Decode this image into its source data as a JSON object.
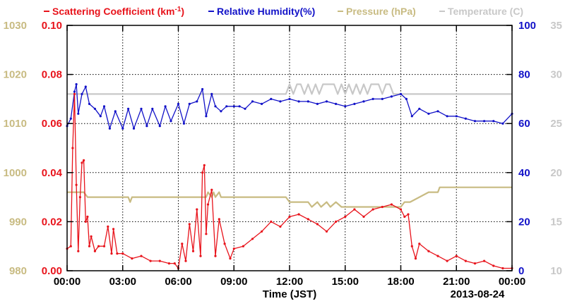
{
  "chart_data": {
    "type": "line",
    "title": "",
    "xlabel": "Time (JST)",
    "date_label": "2013-08-24",
    "x_ticks": [
      "00:00",
      "03:00",
      "06:00",
      "09:00",
      "12:00",
      "15:00",
      "18:00",
      "21:00",
      "00:00"
    ],
    "xlim_hours": [
      0,
      24
    ],
    "grid": true,
    "legend_placement": "top",
    "axes": {
      "pressure": {
        "ticks": [
          980,
          990,
          1000,
          1010,
          1020,
          1030
        ],
        "range": [
          980,
          1030
        ],
        "color": "#c8bb82",
        "side": "left-outer"
      },
      "scattering": {
        "ticks": [
          "0.00",
          "0.02",
          "0.04",
          "0.06",
          "0.08",
          "0.10"
        ],
        "range": [
          0,
          0.1
        ],
        "color": "#e8131b",
        "side": "left-inner"
      },
      "humidity": {
        "ticks": [
          0,
          20,
          40,
          60,
          80,
          100
        ],
        "range": [
          0,
          100
        ],
        "color": "#1212c8",
        "side": "right-inner"
      },
      "temperature": {
        "ticks": [
          10,
          15,
          20,
          25,
          30,
          35
        ],
        "range": [
          10,
          35
        ],
        "color": "#c8c8c8",
        "side": "right-outer"
      }
    },
    "series": [
      {
        "name": "Scattering Coefficient (km-1)",
        "legend_main": "Scattering Coefficient (km",
        "legend_sup": "-1",
        "legend_tail": ")",
        "color": "#e8131b",
        "axis": "scattering",
        "markers": true,
        "x": [
          0,
          0.2,
          0.3,
          0.4,
          0.5,
          0.6,
          0.7,
          0.8,
          0.9,
          1.0,
          1.1,
          1.2,
          1.3,
          1.5,
          1.7,
          2.0,
          2.2,
          2.4,
          2.5,
          2.7,
          3.0,
          3.5,
          4.0,
          4.5,
          5.0,
          5.5,
          5.8,
          6.0,
          6.2,
          6.4,
          6.6,
          6.8,
          7.0,
          7.2,
          7.3,
          7.4,
          7.5,
          7.6,
          7.8,
          8.0,
          8.2,
          8.5,
          8.8,
          9.0,
          9.5,
          10.0,
          10.5,
          11.0,
          11.5,
          12.0,
          12.5,
          13.0,
          13.5,
          14.0,
          14.5,
          15.0,
          15.5,
          16.0,
          16.5,
          17.0,
          17.5,
          18.0,
          18.2,
          18.4,
          18.6,
          18.8,
          19.0,
          19.5,
          20.0,
          20.5,
          21.0,
          21.5,
          22.0,
          22.5,
          23.0,
          23.5,
          24.0
        ],
        "values": [
          0.009,
          0.01,
          0.05,
          0.072,
          0.035,
          0.008,
          0.03,
          0.044,
          0.045,
          0.02,
          0.022,
          0.01,
          0.014,
          0.008,
          0.01,
          0.01,
          0.018,
          0.007,
          0.017,
          0.007,
          0.007,
          0.005,
          0.006,
          0.004,
          0.004,
          0.003,
          0.003,
          0.001,
          0.011,
          0.004,
          0.019,
          0.008,
          0.025,
          0.006,
          0.04,
          0.043,
          0.015,
          0.027,
          0.033,
          0.006,
          0.021,
          0.011,
          0.005,
          0.009,
          0.01,
          0.013,
          0.016,
          0.02,
          0.018,
          0.022,
          0.023,
          0.021,
          0.019,
          0.016,
          0.02,
          0.022,
          0.025,
          0.022,
          0.025,
          0.026,
          0.027,
          0.025,
          0.022,
          0.023,
          0.01,
          0.005,
          0.011,
          0.008,
          0.006,
          0.004,
          0.006,
          0.004,
          0.003,
          0.004,
          0.002,
          0.001,
          0.001
        ]
      },
      {
        "name": "Relative Humidity(%)",
        "legend_main": "Relative Humidity(%)",
        "color": "#1212c8",
        "axis": "humidity",
        "markers": true,
        "x": [
          0,
          0.2,
          0.4,
          0.5,
          0.6,
          0.8,
          1.0,
          1.2,
          1.5,
          1.8,
          2.0,
          2.3,
          2.6,
          3.0,
          3.3,
          3.6,
          4.0,
          4.3,
          4.6,
          5.0,
          5.3,
          5.6,
          6.0,
          6.3,
          6.6,
          7.0,
          7.3,
          7.5,
          7.8,
          8.0,
          8.3,
          8.6,
          9.0,
          9.3,
          9.6,
          10.0,
          10.5,
          11.0,
          11.5,
          12.0,
          12.5,
          13.0,
          13.5,
          14.0,
          14.5,
          15.0,
          15.5,
          16.0,
          16.5,
          17.0,
          17.5,
          18.0,
          18.3,
          18.6,
          19.0,
          19.5,
          20.0,
          20.5,
          21.0,
          21.5,
          22.0,
          22.5,
          23.0,
          23.5,
          24.0
        ],
        "values": [
          59,
          62,
          73,
          76,
          64,
          72,
          75,
          68,
          66,
          63,
          67,
          58,
          65,
          58,
          66,
          58,
          66,
          59,
          66,
          59,
          67,
          61,
          68,
          60,
          68,
          69,
          74,
          63,
          72,
          67,
          65,
          67,
          67,
          67,
          66,
          69,
          68,
          70,
          69,
          70,
          69,
          69,
          68,
          69,
          68,
          67,
          68,
          69,
          70,
          70,
          71,
          72,
          70,
          63,
          66,
          64,
          65,
          63,
          63,
          62,
          61,
          61,
          61,
          60,
          64
        ]
      },
      {
        "name": "Pressure (hPa)",
        "legend_main": "Pressure (hPa)",
        "color": "#c8bb82",
        "axis": "pressure",
        "markers": false,
        "x": [
          0,
          0.9,
          1.1,
          3.3,
          3.4,
          3.5,
          6.5,
          7.5,
          7.6,
          7.8,
          7.9,
          8.0,
          8.2,
          8.3,
          9.5,
          11.8,
          12.0,
          13.0,
          13.2,
          13.5,
          13.7,
          14.0,
          14.2,
          14.5,
          14.8,
          18.0,
          18.2,
          18.5,
          19.0,
          19.5,
          19.8,
          20.0,
          20.1,
          20.3,
          24.0
        ],
        "values": [
          996,
          996,
          995,
          995,
          994,
          995,
          995,
          995,
          996,
          995,
          996,
          995,
          996,
          995,
          995,
          995,
          994,
          994,
          993,
          994,
          993,
          994,
          993,
          994,
          993,
          993,
          994,
          994,
          995,
          996,
          996,
          996,
          997,
          997,
          997
        ]
      },
      {
        "name": "Temperature (C)",
        "legend_main": "Temperature (C)",
        "color": "#c8c8c8",
        "axis": "temperature",
        "markers": false,
        "x": [
          0,
          11.8,
          12.0,
          12.2,
          12.4,
          12.6,
          12.8,
          13.0,
          13.2,
          13.4,
          13.6,
          13.8,
          14.0,
          14.4,
          14.6,
          14.8,
          15.0,
          15.2,
          15.4,
          15.6,
          15.8,
          16.0,
          16.2,
          16.4,
          16.6,
          16.8,
          17.0,
          17.2,
          17.4,
          17.6,
          17.8,
          18.0,
          24.0
        ],
        "values": [
          28,
          28,
          29,
          28,
          29,
          29,
          28,
          29,
          28,
          29,
          28,
          29,
          29,
          29,
          28,
          29,
          28,
          29,
          28,
          29,
          28,
          29,
          28,
          29,
          29,
          29,
          28,
          29,
          29,
          28,
          28,
          28,
          28
        ]
      }
    ]
  }
}
